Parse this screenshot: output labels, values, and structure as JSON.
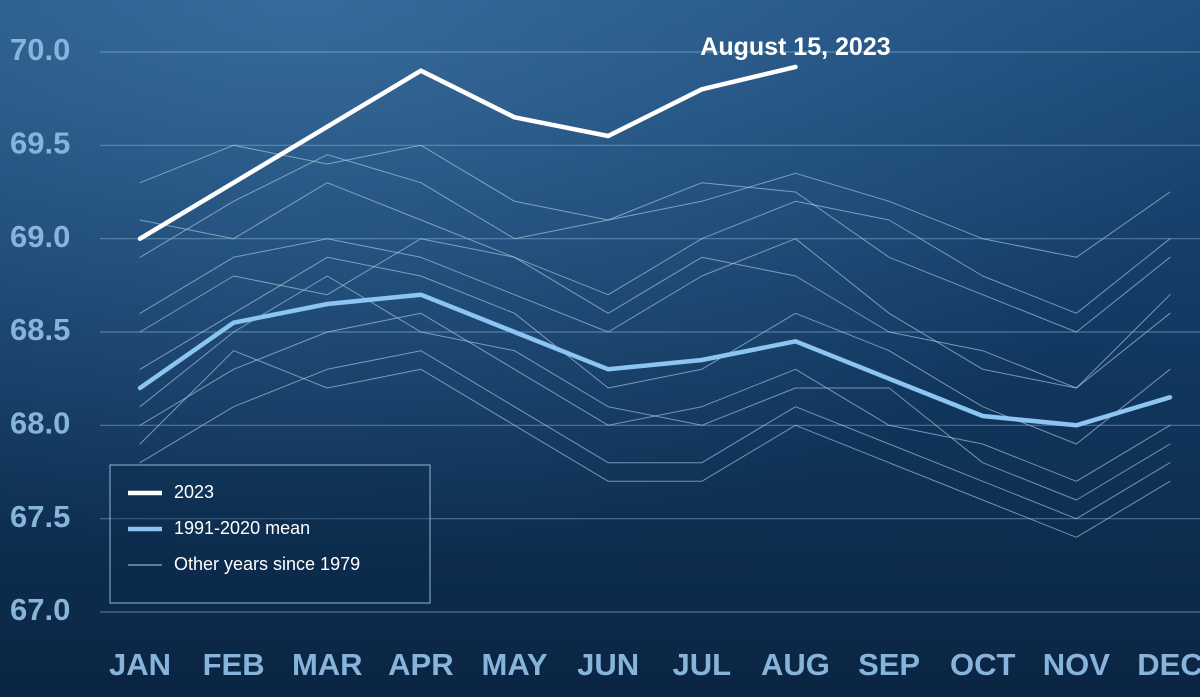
{
  "chart_data": {
    "type": "line",
    "annotation": "August 15, 2023",
    "categories": [
      "JAN",
      "FEB",
      "MAR",
      "APR",
      "MAY",
      "JUN",
      "JUL",
      "AUG",
      "SEP",
      "OCT",
      "NOV",
      "DEC"
    ],
    "ylim": [
      67.0,
      70.15
    ],
    "yticks": [
      {
        "value": 67,
        "label": "67.0"
      },
      67.5,
      {
        "value": 68,
        "label": "68.0"
      },
      68.5,
      {
        "value": 69,
        "label": "69.0"
      },
      69.5,
      {
        "value": 70,
        "label": "70.0"
      }
    ],
    "grid": true,
    "legend": "bottom-left",
    "series": [
      {
        "name": "2023",
        "color": "#ffffff",
        "width": 4.5,
        "values": [
          69.0,
          69.3,
          69.6,
          69.9,
          69.65,
          69.55,
          69.8,
          69.92,
          null,
          null,
          null,
          null
        ]
      },
      {
        "name": "1991-2020 mean",
        "color": "#8cc4f2",
        "width": 4.5,
        "values": [
          68.2,
          68.55,
          68.65,
          68.7,
          68.5,
          68.3,
          68.35,
          68.45,
          68.25,
          68.05,
          68.0,
          68.15
        ]
      },
      {
        "name": "Other years since 1979",
        "color": "#b9d3ea",
        "width": 1,
        "values": [
          [
            69.3,
            69.5,
            69.4,
            69.5,
            69.2,
            69.1,
            69.2,
            69.35,
            69.2,
            69.0,
            68.9,
            69.25
          ],
          [
            68.9,
            69.2,
            69.45,
            69.3,
            69.0,
            69.1,
            69.3,
            69.25,
            68.9,
            68.7,
            68.5,
            68.9
          ],
          [
            68.6,
            68.9,
            69.0,
            68.9,
            68.7,
            68.5,
            68.8,
            69.0,
            68.6,
            68.3,
            68.2,
            68.6
          ],
          [
            68.3,
            68.6,
            68.9,
            68.8,
            68.6,
            68.2,
            68.3,
            68.6,
            68.4,
            68.1,
            67.9,
            68.3
          ],
          [
            68.0,
            68.3,
            68.5,
            68.6,
            68.3,
            68.0,
            68.1,
            68.3,
            68.0,
            67.9,
            67.7,
            68.0
          ],
          [
            67.8,
            68.1,
            68.3,
            68.4,
            68.1,
            67.8,
            67.8,
            68.1,
            67.9,
            67.7,
            67.5,
            67.8
          ],
          [
            68.5,
            68.8,
            68.7,
            69.0,
            68.9,
            68.6,
            68.9,
            68.8,
            68.5,
            68.4,
            68.2,
            68.7
          ],
          [
            68.1,
            68.5,
            68.8,
            68.5,
            68.4,
            68.1,
            68.0,
            68.2,
            68.2,
            67.8,
            67.6,
            67.9
          ],
          [
            69.1,
            69.0,
            69.3,
            69.1,
            68.9,
            68.7,
            69.0,
            69.2,
            69.1,
            68.8,
            68.6,
            69.0
          ],
          [
            67.9,
            68.4,
            68.2,
            68.3,
            68.0,
            67.7,
            67.7,
            68.0,
            67.8,
            67.6,
            67.4,
            67.7
          ]
        ]
      }
    ]
  }
}
